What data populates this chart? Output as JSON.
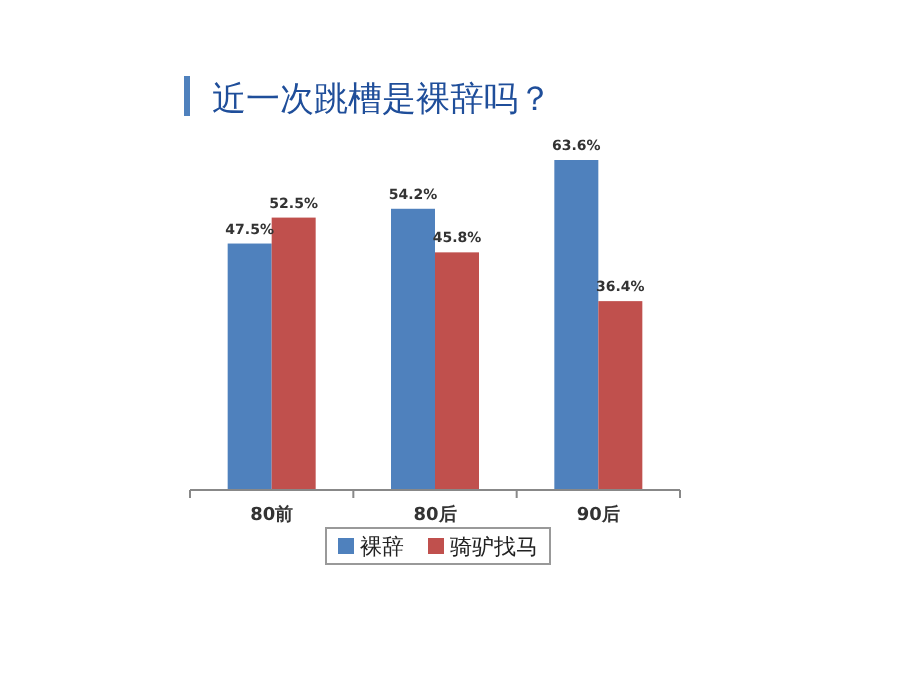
{
  "chart_data": {
    "type": "bar",
    "title": "近一次跳槽是裸辞吗？",
    "categories": [
      "80前",
      "80后",
      "90后"
    ],
    "series": [
      {
        "name": "裸辞",
        "color": "#4f81bd",
        "values": [
          47.5,
          54.2,
          63.6
        ],
        "value_labels": [
          "47.5%",
          "54.2%",
          "63.6%"
        ]
      },
      {
        "name": "骑驴找马",
        "color": "#c0504d",
        "values": [
          52.5,
          45.8,
          36.4
        ],
        "value_labels": [
          "52.5%",
          "45.8%",
          "36.4%"
        ]
      }
    ],
    "legend": "bottom"
  }
}
